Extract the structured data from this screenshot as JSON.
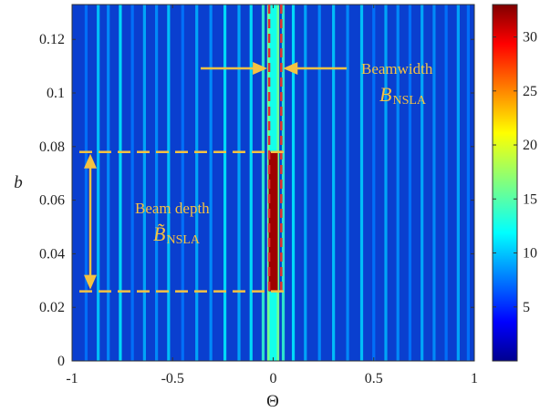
{
  "chart_data": {
    "type": "heatmap",
    "title": "",
    "xlabel": "Θ",
    "ylabel": "b",
    "xlim": [
      -1,
      1
    ],
    "ylim": [
      0,
      0.133
    ],
    "x_ticks": [
      -1,
      -0.5,
      0,
      0.5,
      1
    ],
    "x_tick_labels": [
      "-1",
      "-0.5",
      "0",
      "0.5",
      "1"
    ],
    "y_ticks": [
      0,
      0.02,
      0.04,
      0.06,
      0.08,
      0.1,
      0.12
    ],
    "y_tick_labels": [
      "0",
      "0.02",
      "0.04",
      "0.06",
      "0.08",
      "0.1",
      "0.12"
    ],
    "colorbar": {
      "range": [
        0,
        33
      ],
      "ticks": [
        5,
        10,
        15,
        20,
        25,
        30
      ],
      "tick_labels": [
        "5",
        "10",
        "15",
        "20",
        "25",
        "30"
      ],
      "colormap": "jet"
    },
    "main_beam": {
      "center": 0,
      "width_theta": 0.06,
      "b_start": 0.026,
      "b_end": 0.078,
      "peak_value": 32
    },
    "vertical_stripes": [
      {
        "theta": -0.93,
        "value": 8
      },
      {
        "theta": -0.87,
        "value": 11
      },
      {
        "theta": -0.82,
        "value": 9
      },
      {
        "theta": -0.76,
        "value": 12
      },
      {
        "theta": -0.7,
        "value": 8
      },
      {
        "theta": -0.64,
        "value": 10
      },
      {
        "theta": -0.58,
        "value": 9
      },
      {
        "theta": -0.52,
        "value": 11
      },
      {
        "theta": -0.45,
        "value": 8
      },
      {
        "theta": -0.38,
        "value": 10
      },
      {
        "theta": -0.31,
        "value": 9
      },
      {
        "theta": -0.24,
        "value": 12
      },
      {
        "theta": -0.17,
        "value": 10
      },
      {
        "theta": -0.11,
        "value": 12
      },
      {
        "theta": -0.05,
        "value": 14
      },
      {
        "theta": 0.05,
        "value": 14
      },
      {
        "theta": 0.1,
        "value": 12
      },
      {
        "theta": 0.16,
        "value": 10
      },
      {
        "theta": 0.23,
        "value": 9
      },
      {
        "theta": 0.3,
        "value": 11
      },
      {
        "theta": 0.37,
        "value": 9
      },
      {
        "theta": 0.44,
        "value": 11
      },
      {
        "theta": 0.5,
        "value": 8
      },
      {
        "theta": 0.56,
        "value": 10
      },
      {
        "theta": 0.62,
        "value": 9
      },
      {
        "theta": 0.68,
        "value": 8
      },
      {
        "theta": 0.74,
        "value": 10
      },
      {
        "theta": 0.8,
        "value": 9
      },
      {
        "theta": 0.86,
        "value": 8
      },
      {
        "theta": 0.92,
        "value": 10
      },
      {
        "theta": 0.97,
        "value": 8
      }
    ],
    "annotations": [
      {
        "label": "Beamwidth",
        "symbol": "B",
        "subscript": "NSLA",
        "theta_range": [
          -0.02,
          0.04
        ]
      },
      {
        "label": "Beam depth",
        "symbol": "B̃",
        "subscript": "NSLA",
        "b_range": [
          0.026,
          0.078
        ]
      }
    ],
    "colors": {
      "low": "#00008f",
      "background": "#0a3fcf",
      "high": "#d40000",
      "annotation": "#f5c242",
      "beam_box": "#e03030"
    }
  }
}
